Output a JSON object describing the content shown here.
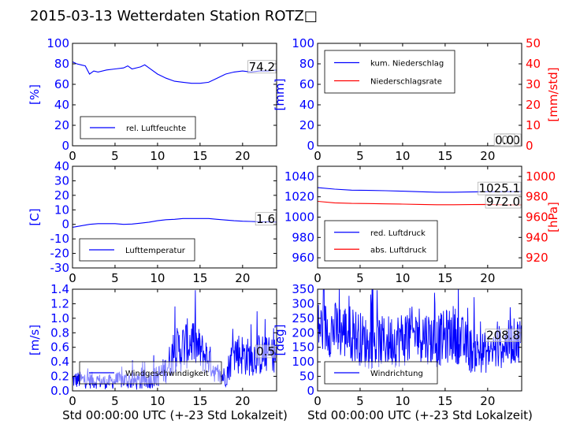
{
  "title": "2015-03-13 Wetterdaten Station ROTZ□",
  "xlabel": "Std 00:00:00 UTC (+-23 Std Lokalzeit)",
  "colors": {
    "primary": "#0000ff",
    "secondary": "#ff0000",
    "axis": "#000000"
  },
  "chart_data": [
    {
      "type": "line",
      "panel": "top-left",
      "ylabel": "[%]",
      "xlim": [
        0,
        24
      ],
      "ylim": [
        0,
        100
      ],
      "xticks": [
        0,
        5,
        10,
        15,
        20
      ],
      "yticks": [
        0,
        20,
        40,
        60,
        80,
        100
      ],
      "legend": [
        "rel. Luftfeuchte"
      ],
      "legend_position": "lower-left",
      "last_value_label": "74.2",
      "series": [
        {
          "name": "rel. Luftfeuchte",
          "color": "#0000ff",
          "x": [
            0,
            0.5,
            1,
            1.5,
            2,
            2.5,
            3,
            4,
            5,
            6,
            6.5,
            7,
            8,
            8.5,
            9,
            10,
            11,
            12,
            13,
            14,
            15,
            16,
            17,
            18,
            19,
            20,
            21,
            22,
            23,
            24
          ],
          "y": [
            82,
            80,
            79,
            78,
            70,
            73,
            72,
            74,
            75,
            76,
            78,
            75,
            77,
            79,
            76,
            70,
            66,
            63,
            62,
            61,
            61,
            62,
            66,
            70,
            72,
            73,
            72,
            73,
            73,
            74
          ]
        }
      ]
    },
    {
      "type": "line",
      "panel": "top-right",
      "ylabel": "[mm]",
      "ylabel_right": "[mm/std]",
      "xlim": [
        0,
        24
      ],
      "ylim": [
        0,
        100
      ],
      "ylim_right": [
        0,
        50
      ],
      "xticks": [
        0,
        5,
        10,
        15,
        20
      ],
      "yticks": [
        0,
        20,
        40,
        60,
        80,
        100
      ],
      "yticks_right": [
        0,
        10,
        20,
        30,
        40,
        50
      ],
      "legend": [
        "kum. Niederschlag",
        "Niederschlagsrate"
      ],
      "legend_position": "upper-left",
      "last_value_label": "0.0",
      "last_value_label_2": "0.0",
      "series": [
        {
          "name": "kum. Niederschlag",
          "color": "#0000ff",
          "axis": "left",
          "x": [
            0,
            24
          ],
          "y": [
            0,
            0
          ]
        },
        {
          "name": "Niederschlagsrate",
          "color": "#ff0000",
          "axis": "right",
          "x": [
            0,
            24
          ],
          "y": [
            0,
            0
          ]
        }
      ]
    },
    {
      "type": "line",
      "panel": "middle-left",
      "ylabel": "[C]",
      "xlim": [
        0,
        24
      ],
      "ylim": [
        -30,
        40
      ],
      "xticks": [
        0,
        5,
        10,
        15,
        20
      ],
      "yticks": [
        -30,
        -20,
        -10,
        0,
        10,
        20,
        30,
        40
      ],
      "legend": [
        "Lufttemperatur"
      ],
      "legend_position": "lower-left",
      "last_value_label": "1.6",
      "series": [
        {
          "name": "Lufttemperatur",
          "color": "#0000ff",
          "x": [
            0,
            1,
            2,
            3,
            4,
            5,
            6,
            7,
            8,
            9,
            10,
            11,
            12,
            13,
            14,
            15,
            16,
            17,
            18,
            19,
            20,
            21,
            22,
            23,
            24
          ],
          "y": [
            -2,
            -1,
            0,
            0.5,
            0.5,
            0.5,
            0,
            0.2,
            0.8,
            1.5,
            2.5,
            3.2,
            3.5,
            4,
            4,
            4,
            4,
            3.5,
            3,
            2.5,
            2.2,
            2,
            1.8,
            1.7,
            1.6
          ]
        }
      ]
    },
    {
      "type": "line",
      "panel": "middle-right",
      "ylabel_right": "[hPa]",
      "xlim": [
        0,
        24
      ],
      "ylim": [
        950,
        1050
      ],
      "ylim_right": [
        910,
        1010
      ],
      "xticks": [
        0,
        5,
        10,
        15,
        20
      ],
      "yticks": [
        960,
        980,
        1000,
        1020,
        1040
      ],
      "yticks_right": [
        920,
        940,
        960,
        980,
        1000
      ],
      "legend": [
        "red. Luftdruck",
        "abs. Luftdruck"
      ],
      "legend_position": "lower-left",
      "last_value_label": "1025.1",
      "last_value_label_2": "972.0",
      "series": [
        {
          "name": "red. Luftdruck",
          "color": "#0000ff",
          "axis": "left",
          "x": [
            0,
            2,
            4,
            6,
            8,
            10,
            12,
            14,
            16,
            18,
            20,
            22,
            24
          ],
          "y": [
            1029,
            1027.5,
            1026.5,
            1026.3,
            1026,
            1025.5,
            1025,
            1024.5,
            1024.5,
            1024.7,
            1025,
            1025,
            1025.1
          ]
        },
        {
          "name": "abs. Luftdruck",
          "color": "#ff0000",
          "axis": "right",
          "x": [
            0,
            2,
            4,
            6,
            8,
            10,
            12,
            14,
            16,
            18,
            20,
            22,
            24
          ],
          "y": [
            975.5,
            974,
            973.5,
            973.3,
            973,
            972.8,
            972.5,
            972.2,
            972.2,
            972.3,
            972.5,
            972,
            972
          ]
        }
      ]
    },
    {
      "type": "line",
      "panel": "bottom-left",
      "ylabel": "[m/s]",
      "xlim": [
        0,
        24
      ],
      "ylim": [
        0,
        1.4
      ],
      "xticks": [
        0,
        5,
        10,
        15,
        20
      ],
      "yticks": [
        0.0,
        0.2,
        0.4,
        0.6,
        0.8,
        1.0,
        1.2,
        1.4
      ],
      "legend": [
        "Windgeschwindigkeit"
      ],
      "legend_position": "lower-left",
      "last_value_label": "0.5",
      "noisy": true,
      "series": [
        {
          "name": "Windgeschwindigkeit",
          "color": "#0000ff",
          "x": [
            0,
            2,
            4,
            6,
            8,
            10,
            11,
            12,
            13,
            14,
            15,
            16,
            17,
            18,
            19,
            20,
            21,
            22,
            23,
            24
          ],
          "y": [
            0.15,
            0.15,
            0.12,
            0.15,
            0.12,
            0.2,
            0.3,
            0.55,
            0.6,
            0.7,
            0.55,
            0.45,
            0.2,
            0.2,
            0.55,
            0.5,
            0.45,
            0.5,
            0.5,
            0.5
          ],
          "spread": [
            0.12,
            0.12,
            0.1,
            0.12,
            0.12,
            0.15,
            0.2,
            0.3,
            0.35,
            0.35,
            0.3,
            0.25,
            0.12,
            0.15,
            0.3,
            0.3,
            0.25,
            0.3,
            0.25,
            0.25
          ]
        }
      ]
    },
    {
      "type": "line",
      "panel": "bottom-right",
      "ylabel": "[deg]",
      "xlim": [
        0,
        24
      ],
      "ylim": [
        0,
        350
      ],
      "xticks": [
        0,
        5,
        10,
        15,
        20
      ],
      "yticks": [
        0,
        50,
        100,
        150,
        200,
        250,
        300,
        350
      ],
      "legend": [
        "Windrichtung"
      ],
      "legend_position": "lower-left",
      "last_value_label": "208.8",
      "noisy": true,
      "series": [
        {
          "name": "Windrichtung",
          "color": "#0000ff",
          "x": [
            0,
            2,
            4,
            6,
            8,
            10,
            12,
            14,
            16,
            18,
            20,
            22,
            24
          ],
          "y": [
            220,
            210,
            200,
            160,
            170,
            180,
            200,
            170,
            200,
            140,
            130,
            160,
            180
          ],
          "spread": [
            90,
            100,
            100,
            90,
            90,
            100,
            100,
            90,
            100,
            80,
            70,
            80,
            80
          ]
        }
      ]
    }
  ]
}
